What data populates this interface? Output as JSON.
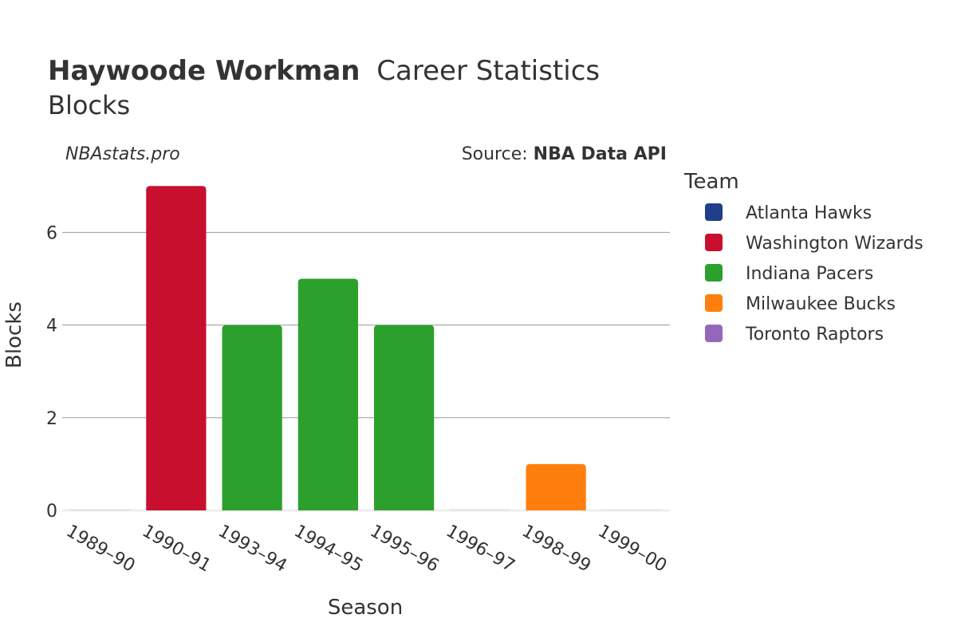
{
  "chart_data": {
    "type": "bar",
    "title_bold": "Haywoode Workman",
    "title_rest": "Career Statistics",
    "subtitle": "Blocks",
    "credit_left": "NBAstats.pro",
    "credit_right_prefix": "Source: ",
    "credit_right_bold": "NBA Data API",
    "xlabel": "Season",
    "ylabel": "Blocks",
    "ylim": [
      0,
      7.4
    ],
    "yticks": [
      0,
      2,
      4,
      6
    ],
    "grid": true,
    "legend_title": "Team",
    "legend_position": "right",
    "categories": [
      "1989–90",
      "1990–91",
      "1993–94",
      "1994–95",
      "1995–96",
      "1996–97",
      "1998–99",
      "1999–00"
    ],
    "teams": [
      {
        "name": "Atlanta Hawks",
        "color": "#1f3f8a"
      },
      {
        "name": "Washington Wizards",
        "color": "#c8102e"
      },
      {
        "name": "Indiana Pacers",
        "color": "#2ca02c"
      },
      {
        "name": "Milwaukee Bucks",
        "color": "#ff7f0e"
      },
      {
        "name": "Toronto Raptors",
        "color": "#9467bd"
      }
    ],
    "bars": [
      {
        "season": "1989–90",
        "team": "Atlanta Hawks",
        "value": 0
      },
      {
        "season": "1990–91",
        "team": "Washington Wizards",
        "value": 7
      },
      {
        "season": "1993–94",
        "team": "Indiana Pacers",
        "value": 4
      },
      {
        "season": "1994–95",
        "team": "Indiana Pacers",
        "value": 5
      },
      {
        "season": "1995–96",
        "team": "Indiana Pacers",
        "value": 4
      },
      {
        "season": "1996–97",
        "team": "Indiana Pacers",
        "value": 0
      },
      {
        "season": "1998–99",
        "team": "Milwaukee Bucks",
        "value": 1
      },
      {
        "season": "1999–00",
        "team": "Toronto Raptors",
        "value": 0
      }
    ]
  }
}
